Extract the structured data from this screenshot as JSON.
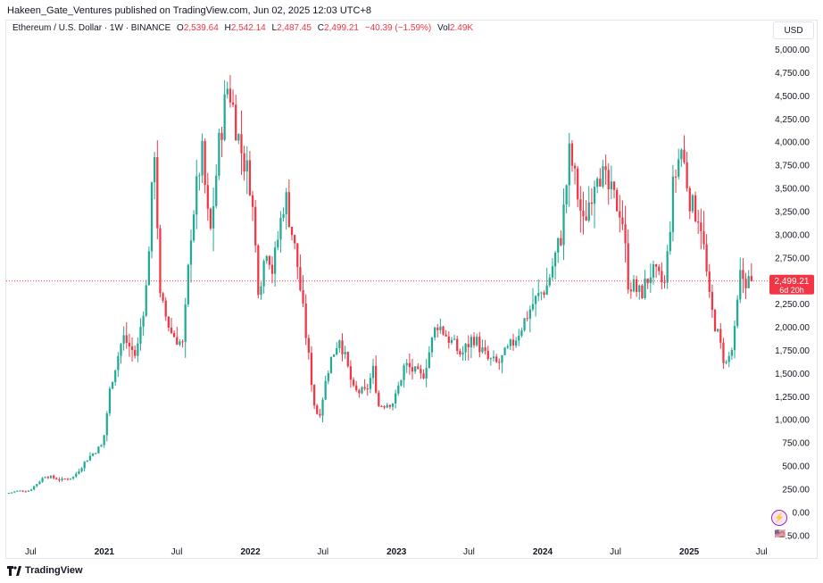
{
  "header": {
    "published": "Hakeen_Gate_Ventures published on TradingView.com, Jun 02, 2025 12:03 UTC+8"
  },
  "legend": {
    "symbol": "Ethereum / U.S. Dollar · 1W · BINANCE",
    "o_label": "O",
    "o_value": "2,539.64",
    "h_label": "H",
    "h_value": "2,542.14",
    "l_label": "L",
    "l_value": "2,487.45",
    "c_label": "C",
    "c_value": "2,499.21",
    "change": "−40.39 (−1.59%)",
    "vol_label": "Vol",
    "vol_value": "2.49K"
  },
  "currency": "USD",
  "price_tag": {
    "price": "2,499.21",
    "countdown": "6d 20h"
  },
  "footer": {
    "brand": "TradingView"
  },
  "badges": {
    "lightning": "⚡",
    "flag": "🇺🇸"
  },
  "colors": {
    "up": "#22ab94",
    "down": "#f23645",
    "axis_text": "#131722",
    "grid": "#e0e3eb"
  },
  "chart_data": {
    "type": "candlestick",
    "interval": "1W",
    "y_axis": {
      "position": "right",
      "min": -300,
      "max": 5150,
      "ticks": [
        "5,000.00",
        "4,750.00",
        "4,500.00",
        "4,250.00",
        "4,000.00",
        "3,750.00",
        "3,500.00",
        "3,250.00",
        "3,000.00",
        "2,750.00",
        "2,500.00",
        "2,250.00",
        "2,000.00",
        "1,750.00",
        "1,500.00",
        "1,250.00",
        "1,000.00",
        "750.00",
        "500.00",
        "250.00",
        "0.00",
        "−250.00"
      ],
      "tick_values": [
        5000,
        4750,
        4500,
        4250,
        4000,
        3750,
        3500,
        3250,
        3000,
        2750,
        2500,
        2250,
        2000,
        1750,
        1500,
        1250,
        1000,
        750,
        500,
        250,
        0,
        -250
      ]
    },
    "x_axis": {
      "start": "2020-05-01",
      "end": "2025-07-16",
      "ticks": [
        {
          "label": "Jul",
          "date": "2020-07-01",
          "bold": false
        },
        {
          "label": "2021",
          "date": "2021-01-01",
          "bold": true
        },
        {
          "label": "Jul",
          "date": "2021-07-01",
          "bold": false
        },
        {
          "label": "2022",
          "date": "2022-01-01",
          "bold": true
        },
        {
          "label": "Jul",
          "date": "2022-07-01",
          "bold": false
        },
        {
          "label": "2023",
          "date": "2023-01-01",
          "bold": true
        },
        {
          "label": "Jul",
          "date": "2023-07-01",
          "bold": false
        },
        {
          "label": "2024",
          "date": "2024-01-01",
          "bold": true
        },
        {
          "label": "Jul",
          "date": "2024-07-01",
          "bold": false
        },
        {
          "label": "2025",
          "date": "2025-01-01",
          "bold": true
        },
        {
          "label": "Jul",
          "date": "2025-07-01",
          "bold": false
        }
      ]
    },
    "last_price": 2499.21,
    "anchors": [
      [
        "2020-05-04",
        205
      ],
      [
        "2020-06-01",
        230
      ],
      [
        "2020-07-01",
        235
      ],
      [
        "2020-08-10",
        395
      ],
      [
        "2020-09-20",
        350
      ],
      [
        "2020-10-20",
        385
      ],
      [
        "2020-11-25",
        590
      ],
      [
        "2021-01-01",
        735
      ],
      [
        "2021-01-20",
        1380
      ],
      [
        "2021-02-20",
        1900
      ],
      [
        "2021-03-25",
        1680
      ],
      [
        "2021-04-20",
        2450
      ],
      [
        "2021-05-10",
        3950
      ],
      [
        "2021-05-24",
        2300
      ],
      [
        "2021-06-20",
        1950
      ],
      [
        "2021-07-20",
        1800
      ],
      [
        "2021-08-10",
        3100
      ],
      [
        "2021-09-05",
        3900
      ],
      [
        "2021-09-25",
        2950
      ],
      [
        "2021-10-20",
        4050
      ],
      [
        "2021-11-10",
        4650
      ],
      [
        "2021-12-10",
        3950
      ],
      [
        "2022-01-05",
        3550
      ],
      [
        "2022-01-25",
        2400
      ],
      [
        "2022-02-15",
        2900
      ],
      [
        "2022-03-01",
        2600
      ],
      [
        "2022-04-01",
        3450
      ],
      [
        "2022-05-01",
        2700
      ],
      [
        "2022-06-15",
        1100
      ],
      [
        "2022-06-25",
        1050
      ],
      [
        "2022-07-20",
        1600
      ],
      [
        "2022-08-15",
        1900
      ],
      [
        "2022-09-20",
        1300
      ],
      [
        "2022-10-20",
        1300
      ],
      [
        "2022-11-08",
        1550
      ],
      [
        "2022-11-20",
        1150
      ],
      [
        "2022-12-30",
        1200
      ],
      [
        "2023-01-25",
        1600
      ],
      [
        "2023-03-10",
        1450
      ],
      [
        "2023-04-15",
        2050
      ],
      [
        "2023-06-15",
        1700
      ],
      [
        "2023-07-15",
        1900
      ],
      [
        "2023-08-20",
        1650
      ],
      [
        "2023-09-15",
        1600
      ],
      [
        "2023-10-25",
        1850
      ],
      [
        "2023-12-10",
        2250
      ],
      [
        "2024-01-15",
        2450
      ],
      [
        "2024-02-20",
        3000
      ],
      [
        "2024-03-12",
        3900
      ],
      [
        "2024-04-15",
        3100
      ],
      [
        "2024-05-20",
        3750
      ],
      [
        "2024-06-20",
        3450
      ],
      [
        "2024-07-20",
        3250
      ],
      [
        "2024-08-05",
        2500
      ],
      [
        "2024-09-05",
        2350
      ],
      [
        "2024-10-01",
        2600
      ],
      [
        "2024-11-05",
        2450
      ],
      [
        "2024-11-25",
        3500
      ],
      [
        "2024-12-15",
        3950
      ],
      [
        "2025-01-10",
        3300
      ],
      [
        "2025-02-01",
        3200
      ],
      [
        "2025-02-25",
        2250
      ],
      [
        "2025-03-15",
        1950
      ],
      [
        "2025-04-05",
        1580
      ],
      [
        "2025-04-25",
        1800
      ],
      [
        "2025-05-12",
        2550
      ],
      [
        "2025-06-02",
        2499.21
      ]
    ]
  }
}
